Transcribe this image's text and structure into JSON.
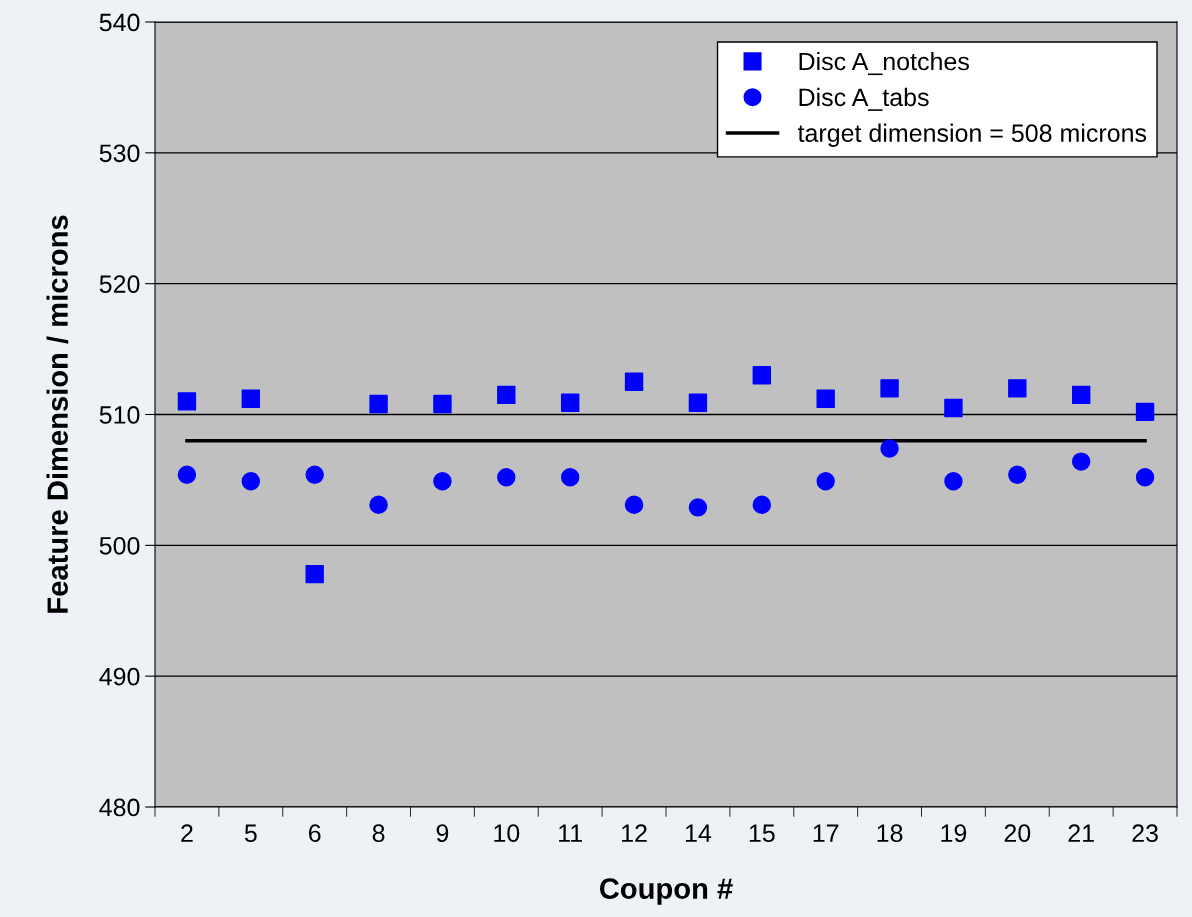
{
  "chart_data": {
    "type": "scatter",
    "xlabel": "Coupon #",
    "ylabel": "Feature Dimension / microns",
    "categories": [
      "2",
      "5",
      "6",
      "8",
      "9",
      "10",
      "11",
      "12",
      "14",
      "15",
      "17",
      "18",
      "19",
      "20",
      "21",
      "23"
    ],
    "series": [
      {
        "name": "Disc A_notches",
        "color": "#0000ff",
        "marker": "square",
        "values": [
          511.0,
          511.2,
          497.8,
          510.8,
          510.8,
          511.5,
          510.9,
          512.5,
          510.9,
          513.0,
          511.2,
          512.0,
          510.5,
          512.0,
          511.5,
          510.2
        ]
      },
      {
        "name": "Disc A_tabs",
        "color": "#0000ff",
        "marker": "circle",
        "values": [
          505.4,
          504.9,
          505.4,
          503.1,
          504.9,
          505.2,
          505.2,
          503.1,
          502.9,
          503.1,
          504.9,
          507.4,
          504.9,
          505.4,
          506.4,
          505.2
        ]
      },
      {
        "name": "target dimension = 508 microns",
        "type": "line",
        "color": "#000000",
        "marker": "none",
        "line_style": "solid",
        "values": [
          508,
          508,
          508,
          508,
          508,
          508,
          508,
          508,
          508,
          508,
          508,
          508,
          508,
          508,
          508,
          508
        ]
      }
    ],
    "ylim": [
      480,
      540
    ],
    "yticks": [
      480,
      490,
      500,
      510,
      520,
      530,
      540
    ],
    "grid": "y",
    "legend": "top right"
  }
}
